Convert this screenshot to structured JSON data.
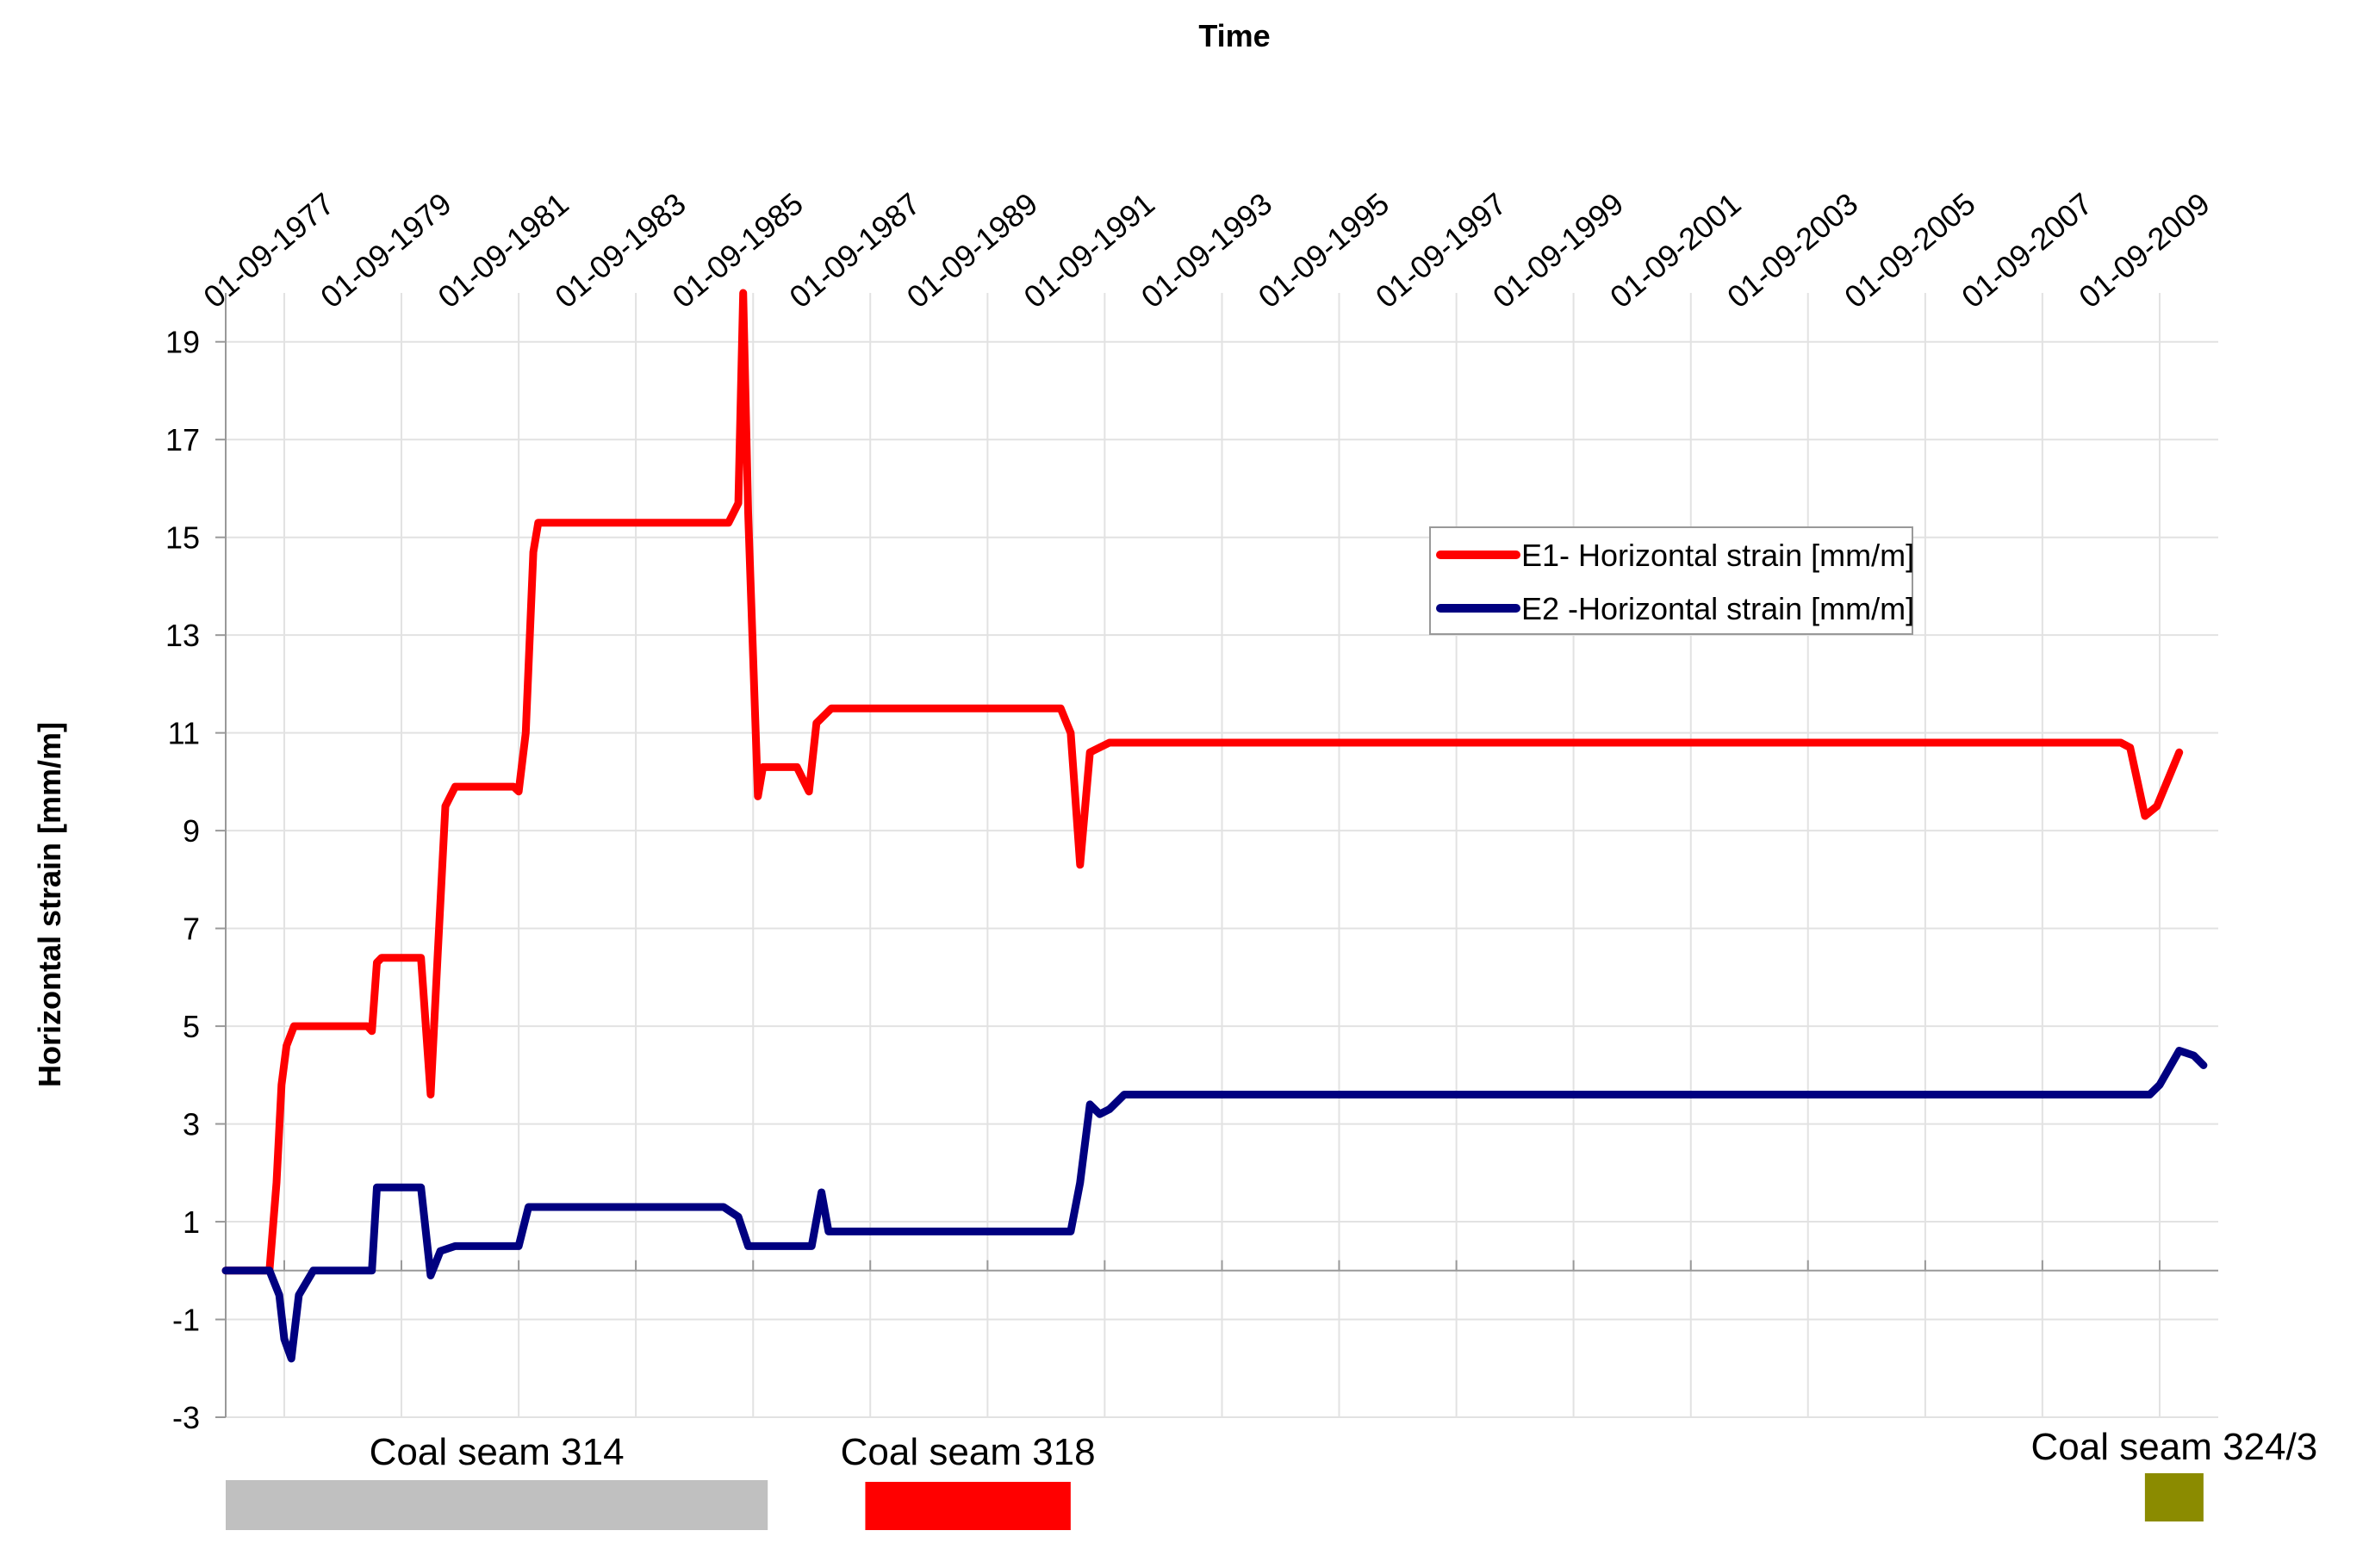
{
  "chart_data": {
    "type": "line",
    "title": "",
    "xlabel": "Time",
    "ylabel": "Horizontal strain [mm/m]",
    "x_axis_position": "top",
    "x_type": "date",
    "xlim": [
      "1976-09-01",
      "2010-09-01"
    ],
    "ylim": [
      -3,
      20
    ],
    "yticks": [
      -3,
      -1,
      1,
      3,
      5,
      7,
      9,
      11,
      13,
      15,
      17,
      19
    ],
    "xticks": [
      "1977-09-01",
      "1979-09-01",
      "1981-09-01",
      "1983-09-01",
      "1985-09-01",
      "1987-09-01",
      "1989-09-01",
      "1991-09-01",
      "1993-09-01",
      "1995-09-01",
      "1997-09-01",
      "1999-09-01",
      "2001-09-01",
      "2003-09-01",
      "2005-09-01",
      "2007-09-01",
      "2009-09-01"
    ],
    "xtick_labels": [
      "01-09-1977",
      "01-09-1979",
      "01-09-1981",
      "01-09-1983",
      "01-09-1985",
      "01-09-1987",
      "01-09-1989",
      "01-09-1991",
      "01-09-1993",
      "01-09-1995",
      "01-09-1997",
      "01-09-1999",
      "01-09-2001",
      "01-09-2003",
      "01-09-2005",
      "01-09-2007",
      "01-09-2009"
    ],
    "grid": true,
    "legend_position": "upper-center-right",
    "series": [
      {
        "name": "E1- Horizontal strain [mm/m]",
        "color": "#ff0000",
        "points": [
          [
            "1976-09-01",
            0
          ],
          [
            "1977-06-01",
            0
          ],
          [
            "1977-07-15",
            1.8
          ],
          [
            "1977-08-15",
            3.8
          ],
          [
            "1977-09-15",
            4.6
          ],
          [
            "1977-11-01",
            5.0
          ],
          [
            "1979-02-01",
            5.0
          ],
          [
            "1979-03-01",
            4.9
          ],
          [
            "1979-04-01",
            6.3
          ],
          [
            "1979-05-01",
            6.4
          ],
          [
            "1980-01-01",
            6.4
          ],
          [
            "1980-03-01",
            3.6
          ],
          [
            "1980-04-15",
            6.5
          ],
          [
            "1980-06-01",
            9.5
          ],
          [
            "1980-08-01",
            9.9
          ],
          [
            "1981-08-01",
            9.9
          ],
          [
            "1981-09-01",
            9.8
          ],
          [
            "1981-10-15",
            11.0
          ],
          [
            "1981-12-01",
            14.7
          ],
          [
            "1982-01-01",
            15.3
          ],
          [
            "1985-04-01",
            15.3
          ],
          [
            "1985-06-01",
            15.7
          ],
          [
            "1985-07-01",
            20.0
          ],
          [
            "1985-08-01",
            15.5
          ],
          [
            "1985-10-01",
            9.7
          ],
          [
            "1985-11-01",
            10.3
          ],
          [
            "1986-06-01",
            10.3
          ],
          [
            "1986-08-15",
            9.8
          ],
          [
            "1986-10-01",
            11.2
          ],
          [
            "1987-01-01",
            11.5
          ],
          [
            "1990-12-01",
            11.5
          ],
          [
            "1991-02-01",
            11.0
          ],
          [
            "1991-04-01",
            8.3
          ],
          [
            "1991-06-01",
            10.6
          ],
          [
            "1991-10-01",
            10.8
          ],
          [
            "2009-01-01",
            10.8
          ],
          [
            "2009-03-01",
            10.7
          ],
          [
            "2009-06-01",
            9.3
          ],
          [
            "2009-08-15",
            9.5
          ],
          [
            "2010-01-01",
            10.6
          ]
        ]
      },
      {
        "name": "E2 -Horizontal strain [mm/m]",
        "color": "#000080",
        "points": [
          [
            "1976-09-01",
            0
          ],
          [
            "1977-06-01",
            0
          ],
          [
            "1977-08-01",
            -0.5
          ],
          [
            "1977-09-01",
            -1.4
          ],
          [
            "1977-10-15",
            -1.8
          ],
          [
            "1977-12-01",
            -0.5
          ],
          [
            "1978-03-01",
            0
          ],
          [
            "1979-01-01",
            0
          ],
          [
            "1979-03-01",
            0
          ],
          [
            "1979-04-01",
            1.7
          ],
          [
            "1980-01-01",
            1.7
          ],
          [
            "1980-03-01",
            -0.1
          ],
          [
            "1980-05-01",
            0.4
          ],
          [
            "1980-08-01",
            0.5
          ],
          [
            "1981-09-01",
            0.5
          ],
          [
            "1981-11-01",
            1.3
          ],
          [
            "1985-03-01",
            1.3
          ],
          [
            "1985-06-01",
            1.1
          ],
          [
            "1985-08-01",
            0.5
          ],
          [
            "1986-01-01",
            0.5
          ],
          [
            "1986-09-01",
            0.5
          ],
          [
            "1986-11-01",
            1.6
          ],
          [
            "1986-12-15",
            0.8
          ],
          [
            "1991-02-01",
            0.8
          ],
          [
            "1991-04-01",
            1.8
          ],
          [
            "1991-06-01",
            3.4
          ],
          [
            "1991-08-01",
            3.2
          ],
          [
            "1991-10-01",
            3.3
          ],
          [
            "1992-01-01",
            3.6
          ],
          [
            "2009-07-01",
            3.6
          ],
          [
            "2009-09-01",
            3.8
          ],
          [
            "2010-01-01",
            4.5
          ],
          [
            "2010-04-01",
            4.4
          ],
          [
            "2010-06-01",
            4.2
          ]
        ]
      }
    ],
    "coal_seams": [
      {
        "label": "Coal seam 314",
        "color": "#c0c0c0",
        "start": "1976-09-01",
        "end": "1985-12-01"
      },
      {
        "label": "Coal seam 318",
        "color": "#ff0000",
        "start": "1987-08-01",
        "end": "1991-02-01"
      },
      {
        "label": "Coal seam 324/3",
        "color": "#8b8b00",
        "start": "2009-06-01",
        "end": "2010-06-01"
      }
    ]
  }
}
